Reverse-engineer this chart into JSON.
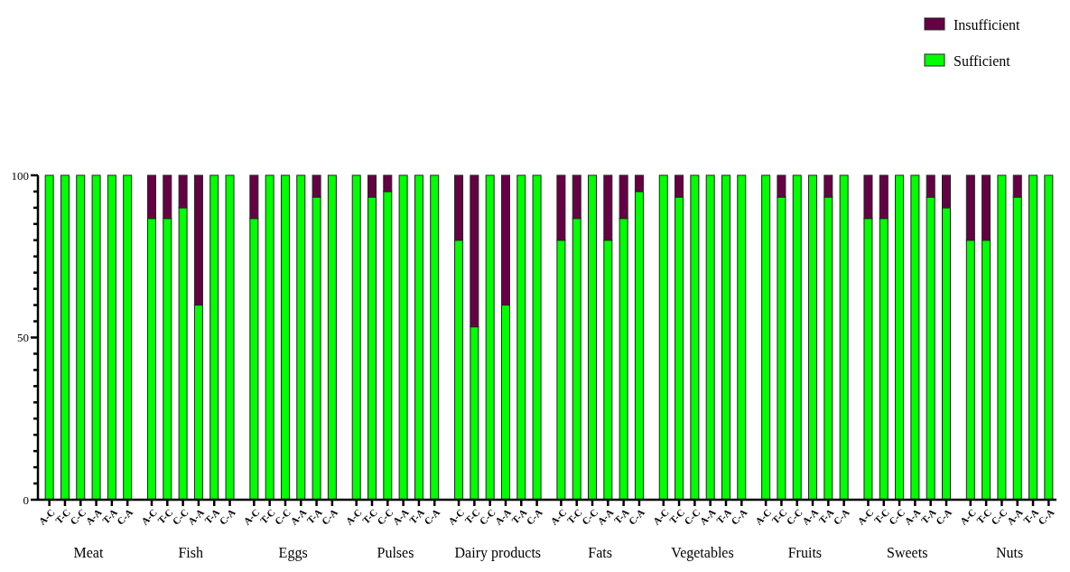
{
  "chart_data": {
    "type": "bar",
    "stacked": true,
    "legend": "top right",
    "grid": false,
    "categories": [
      "A-C",
      "T-C",
      "C-C",
      "A-A",
      "T-A",
      "C-A",
      "A-C",
      "T-C",
      "C-C",
      "A-A",
      "T-A",
      "C-A",
      "A-C",
      "T-C",
      "C-C",
      "A-A",
      "T-A",
      "C-A",
      "A-C",
      "T-C",
      "C-C",
      "A-A",
      "T-A",
      "C-A",
      "A-C",
      "T-C",
      "C-C",
      "A-A",
      "T-A",
      "C-A",
      "A-C",
      "T-C",
      "C-C",
      "A-A",
      "T-A",
      "C-A",
      "A-C",
      "T-C",
      "C-C",
      "A-A",
      "T-A",
      "C-A",
      "A-C",
      "T-C",
      "C-C",
      "A-A",
      "T-A",
      "C-A",
      "A-C",
      "T-C",
      "C-C",
      "A-A",
      "T-A",
      "C-A",
      "A-C",
      "T-C",
      "C-C",
      "A-A",
      "T-A",
      "C-A"
    ],
    "series": [
      {
        "name": "Sufficient",
        "color": "#00ff00",
        "values": [
          100,
          100,
          100,
          100,
          100,
          100,
          86.7,
          86.7,
          90,
          60,
          100,
          100,
          86.7,
          100,
          100,
          100,
          93.3,
          100,
          100,
          93.3,
          95,
          100,
          100,
          100,
          80,
          53.3,
          100,
          60,
          100,
          100,
          80,
          86.7,
          100,
          80,
          86.7,
          95,
          100,
          93.3,
          100,
          100,
          100,
          100,
          100,
          93.3,
          100,
          100,
          93.3,
          100,
          86.7,
          86.7,
          100,
          100,
          93.3,
          90,
          80,
          80,
          100,
          93.3,
          100,
          100
        ]
      },
      {
        "name": "Insufficient",
        "color": "#660044",
        "values": [
          0,
          0,
          0,
          0,
          0,
          0,
          13.3,
          13.3,
          10,
          40,
          0,
          0,
          13.3,
          0,
          0,
          0,
          6.7,
          0,
          0,
          6.7,
          5,
          0,
          0,
          0,
          20,
          46.7,
          0,
          40,
          0,
          0,
          20,
          13.3,
          0,
          20,
          13.3,
          5,
          0,
          6.7,
          0,
          0,
          0,
          0,
          0,
          6.7,
          0,
          0,
          6.7,
          0,
          13.3,
          13.3,
          0,
          0,
          6.7,
          10,
          20,
          20,
          0,
          6.7,
          0,
          0
        ]
      }
    ],
    "ylim": [
      0,
      100
    ],
    "yticks": [
      0,
      {
        "value": 5,
        "label": null
      },
      {
        "value": 10,
        "label": null
      },
      {
        "value": 15,
        "label": null
      },
      {
        "value": 20,
        "label": null
      },
      {
        "value": 25,
        "label": null
      },
      {
        "value": 30,
        "label": null
      },
      {
        "value": 35,
        "label": null
      },
      {
        "value": 40,
        "label": null
      },
      {
        "value": 45,
        "label": null
      },
      50,
      {
        "value": 55,
        "label": null
      },
      {
        "value": 60,
        "label": null
      },
      {
        "value": 65,
        "label": null
      },
      {
        "value": 70,
        "label": null
      },
      {
        "value": 75,
        "label": null
      },
      {
        "value": 80,
        "label": null
      },
      {
        "value": 85,
        "label": null
      },
      {
        "value": 90,
        "label": null
      },
      {
        "value": 95,
        "label": null
      },
      100
    ],
    "annotations": [
      "Meat",
      "Fish",
      "Eggs",
      "Pulses",
      "Dairy products",
      "Fats",
      "Vegetables",
      "Fruits",
      "Sweets",
      "Nuts"
    ]
  }
}
